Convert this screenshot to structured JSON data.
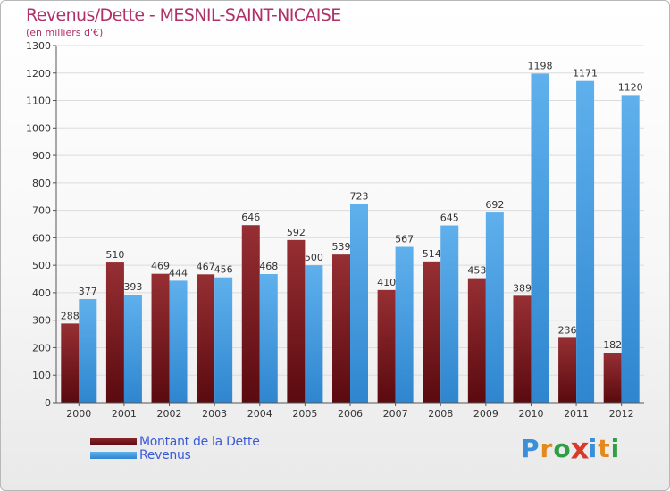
{
  "title": "Revenus/Dette - MESNIL-SAINT-NICAISE",
  "subtitle": "(en milliers d'€)",
  "legend": [
    {
      "label": "Montant de la Dette",
      "color": "#6b0f14"
    },
    {
      "label": "Revenus",
      "color": "#3d9ae0"
    }
  ],
  "logo": {
    "text": "Proxiti",
    "letters": [
      {
        "ch": "P",
        "color": "#3a8fd8"
      },
      {
        "ch": "r",
        "color": "#e38a1c"
      },
      {
        "ch": "o",
        "color": "#2f9e44"
      },
      {
        "ch": "x",
        "color": "#d93b2b"
      },
      {
        "ch": "i",
        "color": "#3a8fd8"
      },
      {
        "ch": "t",
        "color": "#e38a1c"
      },
      {
        "ch": "i",
        "color": "#2f9e44"
      }
    ]
  },
  "chart_data": {
    "type": "bar",
    "title": "Revenus/Dette - MESNIL-SAINT-NICAISE",
    "subtitle": "(en milliers d'€)",
    "xlabel": "",
    "ylabel": "",
    "ylim": [
      0,
      1300
    ],
    "yticks": [
      0,
      100,
      200,
      300,
      400,
      500,
      600,
      700,
      800,
      900,
      1000,
      1100,
      1200,
      1300
    ],
    "grid": true,
    "categories": [
      "2000",
      "2001",
      "2002",
      "2003",
      "2004",
      "2005",
      "2006",
      "2007",
      "2008",
      "2009",
      "2010",
      "2011",
      "2012"
    ],
    "series": [
      {
        "name": "Montant de la Dette",
        "color": "#6b0f14",
        "colorLight": "#9a3437",
        "values": [
          288,
          510,
          469,
          467,
          646,
          592,
          539,
          410,
          514,
          453,
          389,
          236,
          182
        ]
      },
      {
        "name": "Revenus",
        "color": "#3d9ae0",
        "colorLight": "#62b2ec",
        "values": [
          377,
          393,
          444,
          456,
          468,
          500,
          723,
          567,
          645,
          692,
          1198,
          1171,
          1120
        ]
      }
    ],
    "legend_position": "bottom-left"
  }
}
